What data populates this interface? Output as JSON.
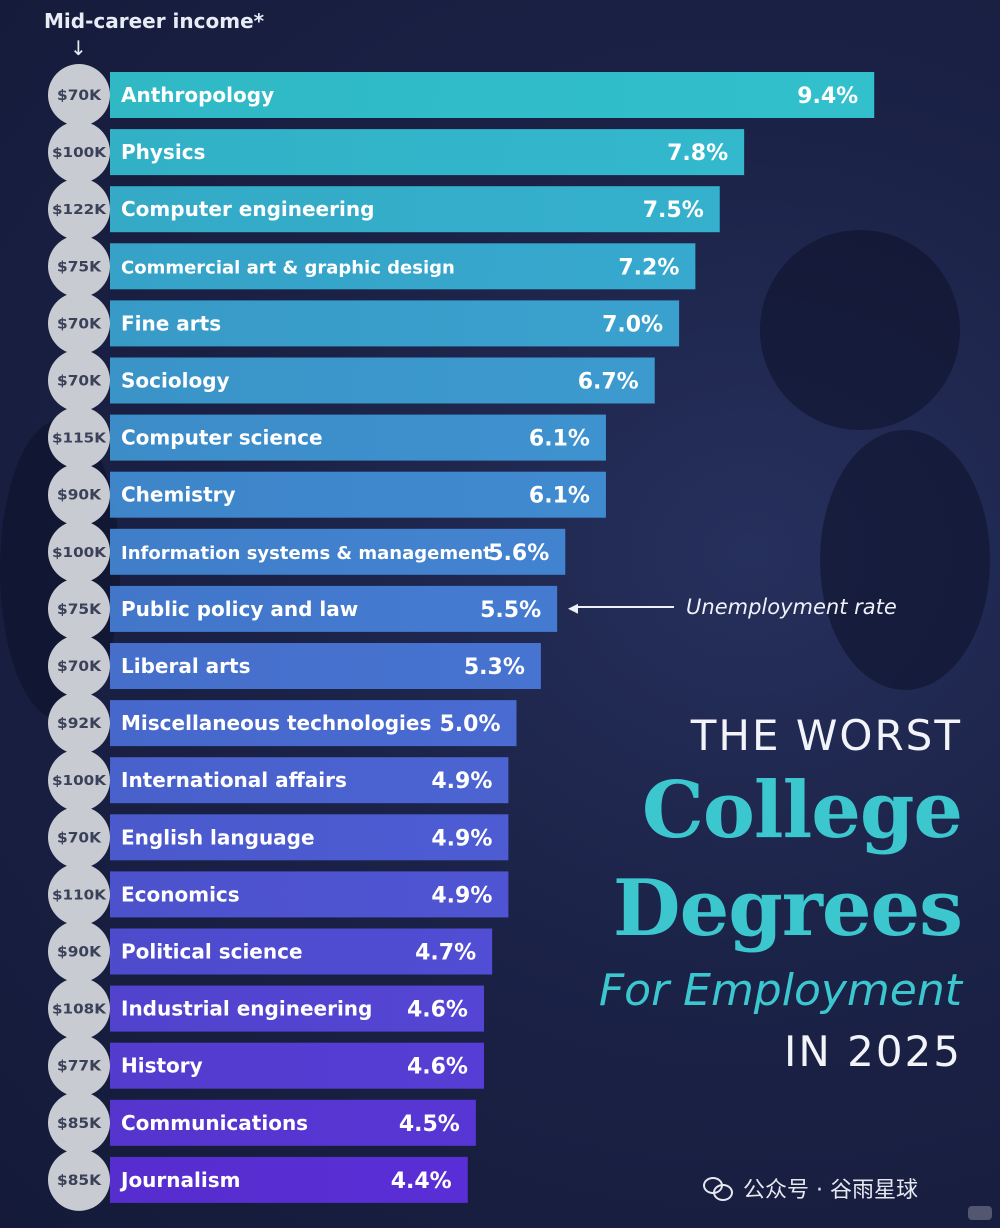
{
  "legend": {
    "income_label": "Mid-career income*",
    "arrow": "↓"
  },
  "annotation": {
    "text": "Unemployment rate",
    "arrow_head": "◂"
  },
  "title": {
    "line1": "THE WORST",
    "line2": "College",
    "line3": "Degrees",
    "line4": "For Employment",
    "line5": "IN 2025"
  },
  "watermark": {
    "text": "公众号 · 谷雨星球",
    "icon": "wechat-icon"
  },
  "colors": {
    "bar_top": "#31c0cc",
    "bar_bottom": "#5a2ed6",
    "income_circle": "#c9cbd2",
    "title_accent": "#3cc7cf"
  },
  "chart_data": {
    "type": "bar",
    "orientation": "horizontal",
    "categories": [
      "Anthropology",
      "Physics",
      "Computer engineering",
      "Commercial art & graphic design",
      "Fine arts",
      "Sociology",
      "Computer science",
      "Chemistry",
      "Information systems & management",
      "Public policy and law",
      "Liberal arts",
      "Miscellaneous technologies",
      "International affairs",
      "English language",
      "Economics",
      "Political science",
      "Industrial engineering",
      "History",
      "Communications",
      "Journalism"
    ],
    "series": [
      {
        "name": "Unemployment rate",
        "values": [
          9.4,
          7.8,
          7.5,
          7.2,
          7.0,
          6.7,
          6.1,
          6.1,
          5.6,
          5.5,
          5.3,
          5.0,
          4.9,
          4.9,
          4.9,
          4.7,
          4.6,
          4.6,
          4.5,
          4.4
        ]
      }
    ],
    "value_labels": [
      "9.4%",
      "7.8%",
      "7.5%",
      "7.2%",
      "7.0%",
      "6.7%",
      "6.1%",
      "6.1%",
      "5.6%",
      "5.5%",
      "5.3%",
      "5.0%",
      "4.9%",
      "4.9%",
      "4.9%",
      "4.7%",
      "4.6%",
      "4.6%",
      "4.5%",
      "4.4%"
    ],
    "income_labels": [
      "$70K",
      "$100K",
      "$122K",
      "$75K",
      "$70K",
      "$70K",
      "$115K",
      "$90K",
      "$100K",
      "$75K",
      "$70K",
      "$92K",
      "$100K",
      "$70K",
      "$110K",
      "$90K",
      "$108K",
      "$77K",
      "$85K",
      "$85K"
    ],
    "income_label": "Mid-career income*"
  }
}
